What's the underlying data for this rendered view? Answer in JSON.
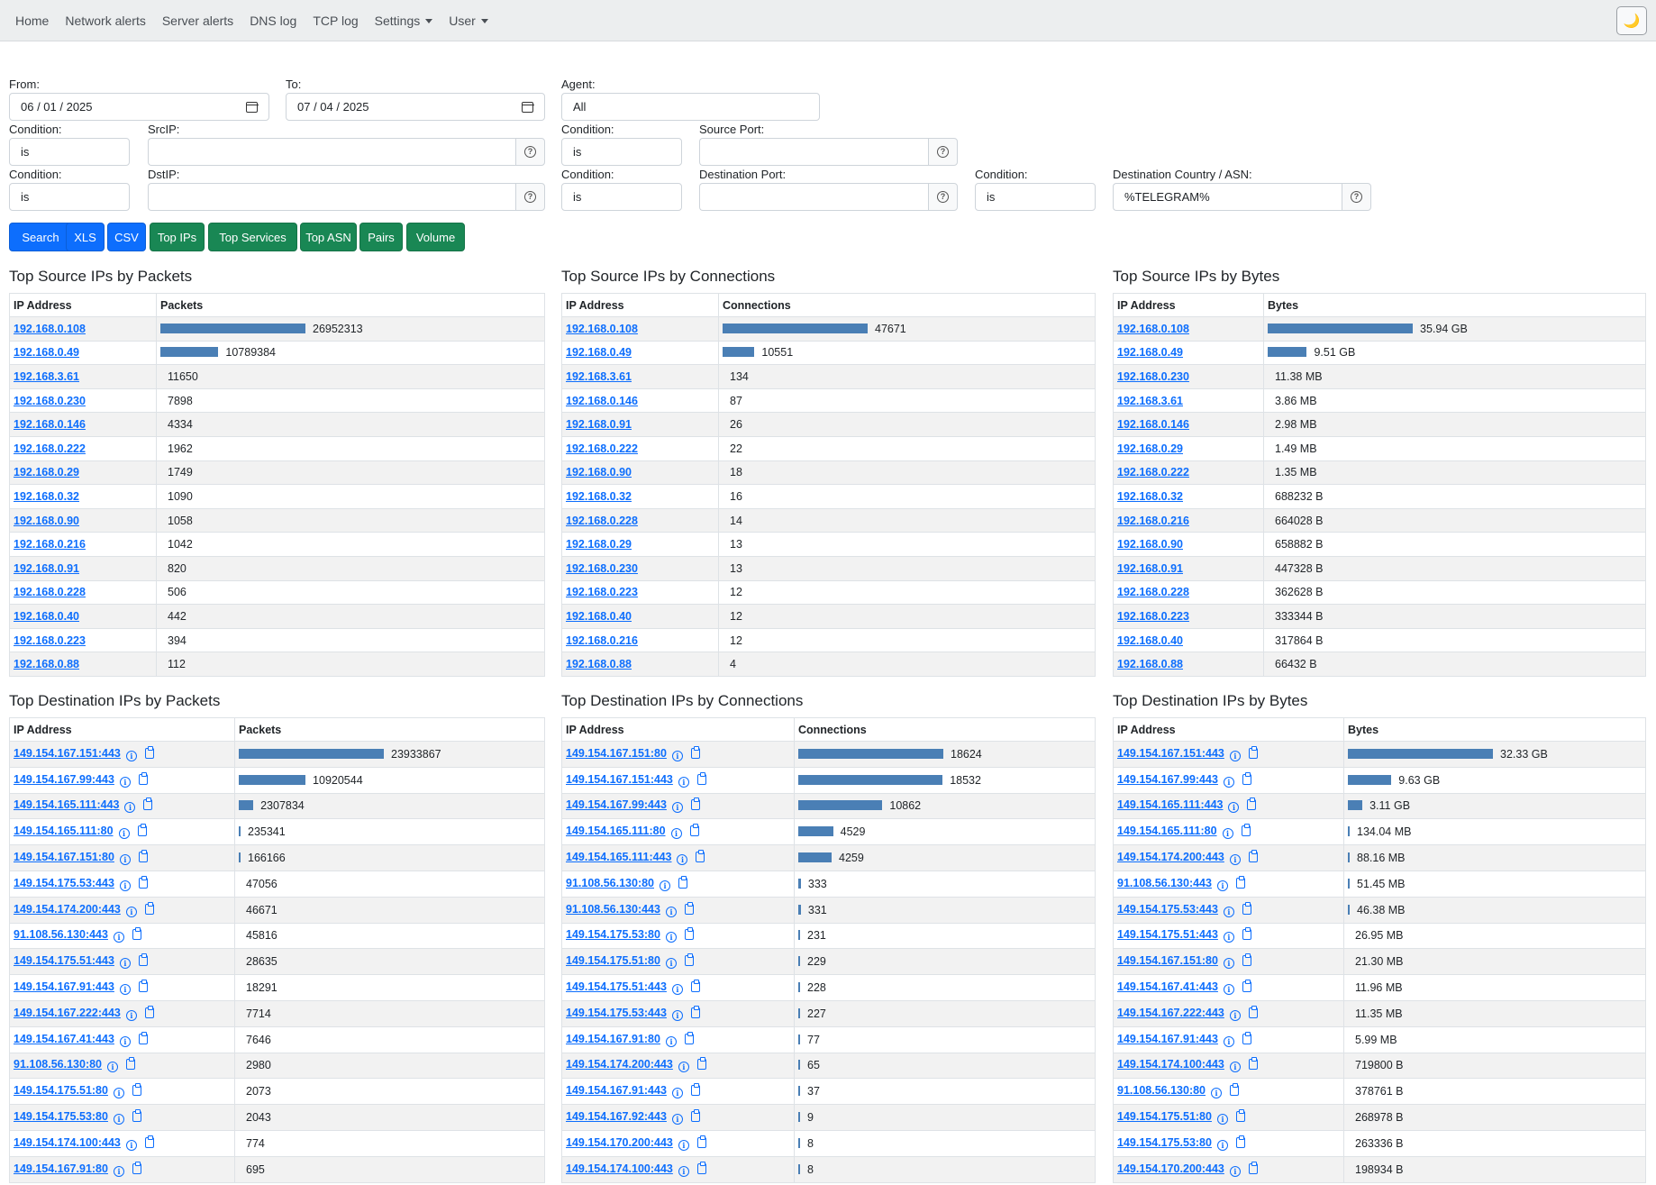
{
  "nav": {
    "items": [
      "Home",
      "Network alerts",
      "Server alerts",
      "DNS log",
      "TCP log"
    ],
    "settings": "Settings",
    "user": "User",
    "theme_icon": "🌙"
  },
  "filters": {
    "from_label": "From:",
    "from_value": "06 / 01 / 2025",
    "to_label": "To:",
    "to_value": "07 / 04 / 2025",
    "agent_label": "Agent:",
    "agent_value": "All",
    "condition_label": "Condition:",
    "condition_value": "is",
    "srcip_label": "SrcIP:",
    "srcip_value": "",
    "source_port_label": "Source Port:",
    "source_port_value": "",
    "dstip_label": "DstIP:",
    "dstip_value": "",
    "dest_port_label": "Destination Port:",
    "dest_port_value": "",
    "dest_country_label": "Destination Country / ASN:",
    "dest_country_value": "%TELEGRAM%",
    "help_glyph": "?"
  },
  "buttons": {
    "search": "Search",
    "xls": "XLS",
    "csv": "CSV",
    "top_ips": "Top IPs",
    "top_services": "Top Services",
    "top_asn": "Top ASN",
    "pairs": "Pairs",
    "volume": "Volume"
  },
  "colors": {
    "primary": "#0d6efd",
    "success": "#198754",
    "bar": "#4a7fb5"
  },
  "panels": [
    {
      "title": "Top Source IPs by Packets",
      "col_ip": "IP Address",
      "col_val": "Packets",
      "kind": "src",
      "rows": [
        {
          "ip": "192.168.0.108",
          "value": "26952313",
          "bar": 1.0
        },
        {
          "ip": "192.168.0.49",
          "value": "10789384",
          "bar": 0.4
        },
        {
          "ip": "192.168.3.61",
          "value": "11650",
          "bar": 0
        },
        {
          "ip": "192.168.0.230",
          "value": "7898",
          "bar": 0
        },
        {
          "ip": "192.168.0.146",
          "value": "4334",
          "bar": 0
        },
        {
          "ip": "192.168.0.222",
          "value": "1962",
          "bar": 0
        },
        {
          "ip": "192.168.0.29",
          "value": "1749",
          "bar": 0
        },
        {
          "ip": "192.168.0.32",
          "value": "1090",
          "bar": 0
        },
        {
          "ip": "192.168.0.90",
          "value": "1058",
          "bar": 0
        },
        {
          "ip": "192.168.0.216",
          "value": "1042",
          "bar": 0
        },
        {
          "ip": "192.168.0.91",
          "value": "820",
          "bar": 0
        },
        {
          "ip": "192.168.0.228",
          "value": "506",
          "bar": 0
        },
        {
          "ip": "192.168.0.40",
          "value": "442",
          "bar": 0
        },
        {
          "ip": "192.168.0.223",
          "value": "394",
          "bar": 0
        },
        {
          "ip": "192.168.0.88",
          "value": "112",
          "bar": 0
        }
      ]
    },
    {
      "title": "Top Source IPs by Connections",
      "col_ip": "IP Address",
      "col_val": "Connections",
      "kind": "src",
      "rows": [
        {
          "ip": "192.168.0.108",
          "value": "47671",
          "bar": 1.0
        },
        {
          "ip": "192.168.0.49",
          "value": "10551",
          "bar": 0.22
        },
        {
          "ip": "192.168.3.61",
          "value": "134",
          "bar": 0
        },
        {
          "ip": "192.168.0.146",
          "value": "87",
          "bar": 0
        },
        {
          "ip": "192.168.0.91",
          "value": "26",
          "bar": 0
        },
        {
          "ip": "192.168.0.222",
          "value": "22",
          "bar": 0
        },
        {
          "ip": "192.168.0.90",
          "value": "18",
          "bar": 0
        },
        {
          "ip": "192.168.0.32",
          "value": "16",
          "bar": 0
        },
        {
          "ip": "192.168.0.228",
          "value": "14",
          "bar": 0
        },
        {
          "ip": "192.168.0.29",
          "value": "13",
          "bar": 0
        },
        {
          "ip": "192.168.0.230",
          "value": "13",
          "bar": 0
        },
        {
          "ip": "192.168.0.223",
          "value": "12",
          "bar": 0
        },
        {
          "ip": "192.168.0.40",
          "value": "12",
          "bar": 0
        },
        {
          "ip": "192.168.0.216",
          "value": "12",
          "bar": 0
        },
        {
          "ip": "192.168.0.88",
          "value": "4",
          "bar": 0
        }
      ]
    },
    {
      "title": "Top Source IPs by Bytes",
      "col_ip": "IP Address",
      "col_val": "Bytes",
      "kind": "src",
      "rows": [
        {
          "ip": "192.168.0.108",
          "value": "35.94 GB",
          "bar": 1.0
        },
        {
          "ip": "192.168.0.49",
          "value": "9.51 GB",
          "bar": 0.27
        },
        {
          "ip": "192.168.0.230",
          "value": "11.38 MB",
          "bar": 0
        },
        {
          "ip": "192.168.3.61",
          "value": "3.86 MB",
          "bar": 0
        },
        {
          "ip": "192.168.0.146",
          "value": "2.98 MB",
          "bar": 0
        },
        {
          "ip": "192.168.0.29",
          "value": "1.49 MB",
          "bar": 0
        },
        {
          "ip": "192.168.0.222",
          "value": "1.35 MB",
          "bar": 0
        },
        {
          "ip": "192.168.0.32",
          "value": "688232 B",
          "bar": 0
        },
        {
          "ip": "192.168.0.216",
          "value": "664028 B",
          "bar": 0
        },
        {
          "ip": "192.168.0.90",
          "value": "658882 B",
          "bar": 0
        },
        {
          "ip": "192.168.0.91",
          "value": "447328 B",
          "bar": 0
        },
        {
          "ip": "192.168.0.228",
          "value": "362628 B",
          "bar": 0
        },
        {
          "ip": "192.168.0.223",
          "value": "333344 B",
          "bar": 0
        },
        {
          "ip": "192.168.0.40",
          "value": "317864 B",
          "bar": 0
        },
        {
          "ip": "192.168.0.88",
          "value": "66432 B",
          "bar": 0
        }
      ]
    },
    {
      "title": "Top Destination IPs by Packets",
      "col_ip": "IP Address",
      "col_val": "Packets",
      "kind": "dst",
      "rows": [
        {
          "ip": "149.154.167.151:443",
          "value": "23933867",
          "bar": 1.0
        },
        {
          "ip": "149.154.167.99:443",
          "value": "10920544",
          "bar": 0.46
        },
        {
          "ip": "149.154.165.111:443",
          "value": "2307834",
          "bar": 0.1
        },
        {
          "ip": "149.154.165.111:80",
          "value": "235341",
          "bar": 0.01
        },
        {
          "ip": "149.154.167.151:80",
          "value": "166166",
          "bar": 0.007
        },
        {
          "ip": "149.154.175.53:443",
          "value": "47056",
          "bar": 0
        },
        {
          "ip": "149.154.174.200:443",
          "value": "46671",
          "bar": 0
        },
        {
          "ip": "91.108.56.130:443",
          "value": "45816",
          "bar": 0
        },
        {
          "ip": "149.154.175.51:443",
          "value": "28635",
          "bar": 0
        },
        {
          "ip": "149.154.167.91:443",
          "value": "18291",
          "bar": 0
        },
        {
          "ip": "149.154.167.222:443",
          "value": "7714",
          "bar": 0
        },
        {
          "ip": "149.154.167.41:443",
          "value": "7646",
          "bar": 0
        },
        {
          "ip": "91.108.56.130:80",
          "value": "2980",
          "bar": 0
        },
        {
          "ip": "149.154.175.51:80",
          "value": "2073",
          "bar": 0
        },
        {
          "ip": "149.154.175.53:80",
          "value": "2043",
          "bar": 0
        },
        {
          "ip": "149.154.174.100:443",
          "value": "774",
          "bar": 0
        },
        {
          "ip": "149.154.167.91:80",
          "value": "695",
          "bar": 0
        }
      ]
    },
    {
      "title": "Top Destination IPs by Connections",
      "col_ip": "IP Address",
      "col_val": "Connections",
      "kind": "dst",
      "rows": [
        {
          "ip": "149.154.167.151:80",
          "value": "18624",
          "bar": 1.0
        },
        {
          "ip": "149.154.167.151:443",
          "value": "18532",
          "bar": 0.995
        },
        {
          "ip": "149.154.167.99:443",
          "value": "10862",
          "bar": 0.58
        },
        {
          "ip": "149.154.165.111:80",
          "value": "4529",
          "bar": 0.24
        },
        {
          "ip": "149.154.165.111:443",
          "value": "4259",
          "bar": 0.23
        },
        {
          "ip": "91.108.56.130:80",
          "value": "333",
          "bar": 0.018
        },
        {
          "ip": "91.108.56.130:443",
          "value": "331",
          "bar": 0.018
        },
        {
          "ip": "149.154.175.53:80",
          "value": "231",
          "bar": 0.012
        },
        {
          "ip": "149.154.175.51:80",
          "value": "229",
          "bar": 0.012
        },
        {
          "ip": "149.154.175.51:443",
          "value": "228",
          "bar": 0.012
        },
        {
          "ip": "149.154.175.53:443",
          "value": "227",
          "bar": 0.012
        },
        {
          "ip": "149.154.167.91:80",
          "value": "77",
          "bar": 0.004
        },
        {
          "ip": "149.154.174.200:443",
          "value": "65",
          "bar": 0.003
        },
        {
          "ip": "149.154.167.91:443",
          "value": "37",
          "bar": 0.002
        },
        {
          "ip": "149.154.167.92:443",
          "value": "9",
          "bar": 0.0005
        },
        {
          "ip": "149.154.170.200:443",
          "value": "8",
          "bar": 0.0004
        },
        {
          "ip": "149.154.174.100:443",
          "value": "8",
          "bar": 0.0004
        }
      ]
    },
    {
      "title": "Top Destination IPs by Bytes",
      "col_ip": "IP Address",
      "col_val": "Bytes",
      "kind": "dst",
      "rows": [
        {
          "ip": "149.154.167.151:443",
          "value": "32.33 GB",
          "bar": 1.0
        },
        {
          "ip": "149.154.167.99:443",
          "value": "9.63 GB",
          "bar": 0.3
        },
        {
          "ip": "149.154.165.111:443",
          "value": "3.11 GB",
          "bar": 0.1
        },
        {
          "ip": "149.154.165.111:80",
          "value": "134.04 MB",
          "bar": 0.004
        },
        {
          "ip": "149.154.174.200:443",
          "value": "88.16 MB",
          "bar": 0.003
        },
        {
          "ip": "91.108.56.130:443",
          "value": "51.45 MB",
          "bar": 0.002
        },
        {
          "ip": "149.154.175.53:443",
          "value": "46.38 MB",
          "bar": 0.001
        },
        {
          "ip": "149.154.175.51:443",
          "value": "26.95 MB",
          "bar": 0
        },
        {
          "ip": "149.154.167.151:80",
          "value": "21.30 MB",
          "bar": 0
        },
        {
          "ip": "149.154.167.41:443",
          "value": "11.96 MB",
          "bar": 0
        },
        {
          "ip": "149.154.167.222:443",
          "value": "11.35 MB",
          "bar": 0
        },
        {
          "ip": "149.154.167.91:443",
          "value": "5.99 MB",
          "bar": 0
        },
        {
          "ip": "149.154.174.100:443",
          "value": "719800 B",
          "bar": 0
        },
        {
          "ip": "91.108.56.130:80",
          "value": "378761 B",
          "bar": 0
        },
        {
          "ip": "149.154.175.51:80",
          "value": "268978 B",
          "bar": 0
        },
        {
          "ip": "149.154.175.53:80",
          "value": "263336 B",
          "bar": 0
        },
        {
          "ip": "149.154.170.200:443",
          "value": "198934 B",
          "bar": 0
        }
      ]
    }
  ]
}
